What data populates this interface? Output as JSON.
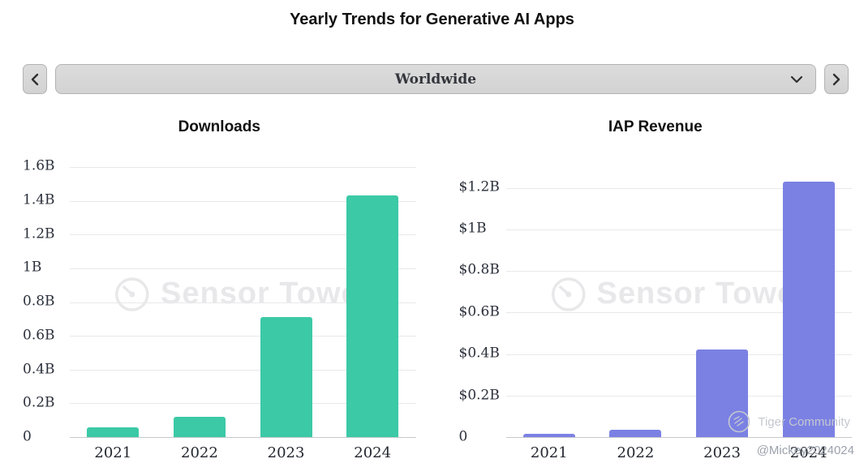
{
  "header": {
    "title": "Yearly Trends for Generative AI Apps"
  },
  "selector": {
    "value": "Worldwide",
    "prev_icon": "chevron-left",
    "next_icon": "chevron-right",
    "dropdown_icon": "chevron-down"
  },
  "watermarks": {
    "sensor_tower": "Sensor Tower",
    "tiger_community": "Tiger Community",
    "handle": "@Mickey2024024"
  },
  "colors": {
    "downloads_bar": "#3bc9a6",
    "revenue_bar": "#7b81e3",
    "gridline": "#e9e9eb",
    "axis_text": "#2a2f3a"
  },
  "chart_data": [
    {
      "type": "bar",
      "title": "Downloads",
      "categories": [
        "2021",
        "2022",
        "2023",
        "2024"
      ],
      "values": [
        0.06,
        0.12,
        0.71,
        1.43
      ],
      "unit": "B downloads",
      "xlabel": "",
      "ylabel": "",
      "ylim": [
        0,
        1.6
      ],
      "yticks": [
        "1.6B",
        "1.4B",
        "1.2B",
        "1B",
        "0.8B",
        "0.6B",
        "0.4B",
        "0.2B",
        "0"
      ],
      "ytick_values": [
        1.6,
        1.4,
        1.2,
        1.0,
        0.8,
        0.6,
        0.4,
        0.2,
        0
      ],
      "bar_color": "#3bc9a6",
      "grid": true,
      "legend": false
    },
    {
      "type": "bar",
      "title": "IAP Revenue",
      "categories": [
        "2021",
        "2022",
        "2023",
        "2024"
      ],
      "values": [
        0.015,
        0.035,
        0.42,
        1.23
      ],
      "unit": "$B revenue",
      "xlabel": "",
      "ylabel": "",
      "ylim": [
        0,
        1.3
      ],
      "yticks": [
        "$1.2B",
        "$1B",
        "$0.8B",
        "$0.6B",
        "$0.4B",
        "$0.2B",
        "0"
      ],
      "ytick_values": [
        1.2,
        1.0,
        0.8,
        0.6,
        0.4,
        0.2,
        0
      ],
      "bar_color": "#7b81e3",
      "grid": true,
      "legend": false
    }
  ]
}
